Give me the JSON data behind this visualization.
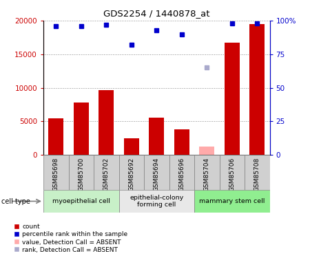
{
  "title": "GDS2254 / 1440878_at",
  "samples": [
    "GSM85698",
    "GSM85700",
    "GSM85702",
    "GSM85692",
    "GSM85694",
    "GSM85696",
    "GSM85704",
    "GSM85706",
    "GSM85708"
  ],
  "bar_values": [
    5400,
    7800,
    9600,
    2500,
    5500,
    3800,
    null,
    16700,
    19500
  ],
  "bar_absent_values": [
    null,
    null,
    null,
    null,
    null,
    null,
    1200,
    null,
    null
  ],
  "rank_values": [
    96,
    96,
    97,
    82,
    93,
    90,
    null,
    98,
    98
  ],
  "rank_absent_values": [
    null,
    null,
    null,
    null,
    null,
    null,
    65,
    null,
    null
  ],
  "bar_color": "#cc0000",
  "bar_absent_color": "#ffaaaa",
  "rank_color": "#0000cc",
  "rank_absent_color": "#aaaacc",
  "ylim_left": [
    0,
    20000
  ],
  "ylim_right": [
    0,
    100
  ],
  "yticks_left": [
    0,
    5000,
    10000,
    15000,
    20000
  ],
  "ytick_labels_left": [
    "0",
    "5000",
    "10000",
    "15000",
    "20000"
  ],
  "yticks_right": [
    0,
    25,
    50,
    75,
    100
  ],
  "ytick_labels_right": [
    "0",
    "25",
    "50",
    "75",
    "100%"
  ],
  "cell_groups": [
    {
      "label": "myoepithelial cell",
      "start": 0,
      "end": 3,
      "color": "#c8f0c8"
    },
    {
      "label": "epithelial-colony\nforming cell",
      "start": 3,
      "end": 6,
      "color": "#e8e8e8"
    },
    {
      "label": "mammary stem cell",
      "start": 6,
      "end": 9,
      "color": "#90ee90"
    }
  ],
  "tick_bg_color": "#d0d0d0",
  "background_color": "#ffffff",
  "grid_color": "#888888",
  "tick_label_color_left": "#cc0000",
  "tick_label_color_right": "#0000cc",
  "legend_items": [
    {
      "color": "#cc0000",
      "label": "count"
    },
    {
      "color": "#0000cc",
      "label": "percentile rank within the sample"
    },
    {
      "color": "#ffaaaa",
      "label": "value, Detection Call = ABSENT"
    },
    {
      "color": "#aaaacc",
      "label": "rank, Detection Call = ABSENT"
    }
  ]
}
